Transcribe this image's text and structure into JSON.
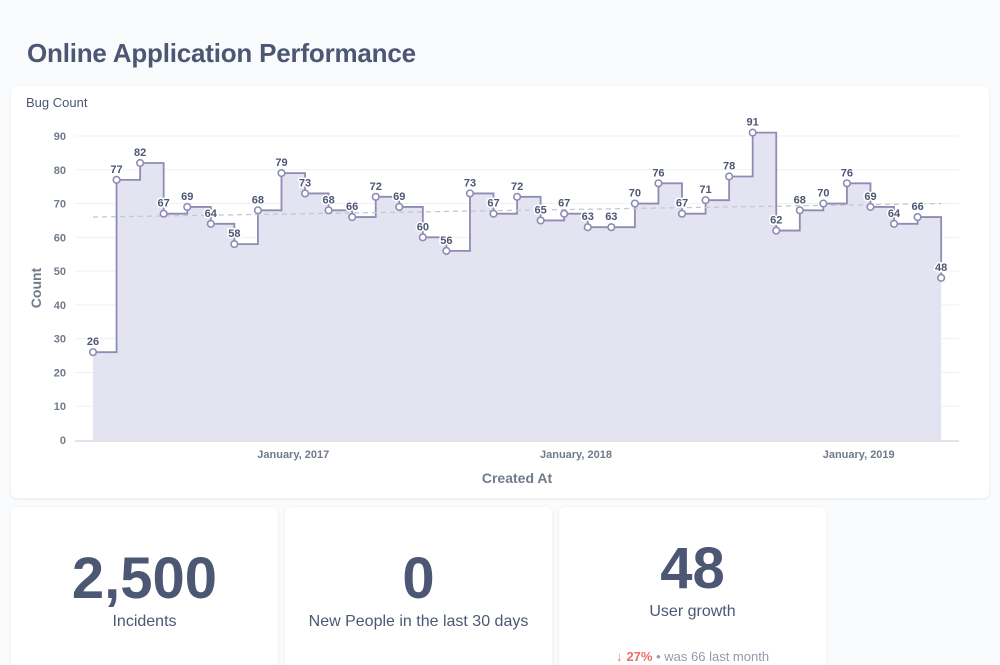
{
  "page": {
    "title": "Online Application Performance"
  },
  "chart_card": {
    "title": "Bug Count"
  },
  "chart_data": {
    "type": "line",
    "step": true,
    "area": true,
    "title": "Bug Count",
    "xlabel": "Created At",
    "ylabel": "Count",
    "ylim": [
      0,
      90
    ],
    "yticks": [
      0,
      10,
      20,
      30,
      40,
      50,
      60,
      70,
      80,
      90
    ],
    "xtick_labels": [
      {
        "label": "January, 2017",
        "index": 8.5
      },
      {
        "label": "January, 2018",
        "index": 20.5
      },
      {
        "label": "January, 2019",
        "index": 32.5
      }
    ],
    "trend_line": {
      "start": 66,
      "end": 70
    },
    "values": [
      26,
      77,
      82,
      67,
      69,
      64,
      58,
      68,
      79,
      73,
      68,
      66,
      72,
      69,
      60,
      56,
      73,
      67,
      72,
      65,
      67,
      63,
      63,
      70,
      76,
      67,
      71,
      78,
      91,
      62,
      68,
      70,
      76,
      69,
      64,
      66,
      48
    ],
    "colors": {
      "line": "#8f8bb3",
      "area": "#e4e3f2",
      "trend": "#c4c7cf"
    }
  },
  "scalars": [
    {
      "value": "2,500",
      "label": "Incidents"
    },
    {
      "value": "0",
      "label": "New People in the last 30 days"
    },
    {
      "value": "48",
      "label": "User growth",
      "compare": {
        "arrow": "↓",
        "pct": "27%",
        "text": "• was 66  last month"
      }
    }
  ],
  "colors": {
    "background": "#f9fbfc",
    "text": "#4c5773",
    "negative": "#ed6e6e"
  }
}
